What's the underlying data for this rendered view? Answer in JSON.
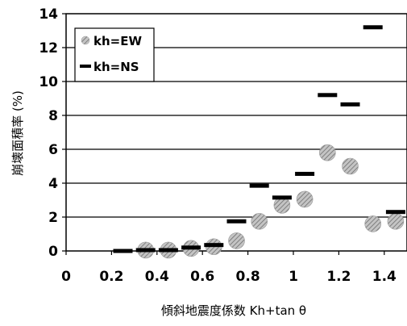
{
  "chart_data": {
    "type": "scatter",
    "xlabel": "傾斜地震度係数 Kh+tan θ",
    "ylabel": "崩壊面積率 (%)",
    "xlim": [
      0,
      1.5
    ],
    "ylim": [
      0,
      14
    ],
    "x_ticks": [
      "0",
      "0.2",
      "0.4",
      "0.6",
      "0.8",
      "1",
      "1.2",
      "1.4"
    ],
    "y_ticks": [
      "0",
      "2",
      "4",
      "6",
      "8",
      "10",
      "12",
      "14"
    ],
    "grid": "horizontal",
    "legend_position": "top-left",
    "series": [
      {
        "name": "kh=EW",
        "marker": "hatched-circle",
        "color": "#a8a8a8",
        "points": [
          {
            "x": 0.35,
            "y": 0.05
          },
          {
            "x": 0.45,
            "y": 0.05
          },
          {
            "x": 0.55,
            "y": 0.15
          },
          {
            "x": 0.65,
            "y": 0.25
          },
          {
            "x": 0.75,
            "y": 0.6
          },
          {
            "x": 0.85,
            "y": 1.75
          },
          {
            "x": 0.95,
            "y": 2.7
          },
          {
            "x": 1.05,
            "y": 3.05
          },
          {
            "x": 1.15,
            "y": 5.8
          },
          {
            "x": 1.25,
            "y": 5.0
          },
          {
            "x": 1.35,
            "y": 1.6
          },
          {
            "x": 1.45,
            "y": 1.75
          }
        ]
      },
      {
        "name": "kh=NS",
        "marker": "dash",
        "color": "#000000",
        "points": [
          {
            "x": 0.25,
            "y": 0.0
          },
          {
            "x": 0.35,
            "y": 0.05
          },
          {
            "x": 0.45,
            "y": 0.05
          },
          {
            "x": 0.55,
            "y": 0.2
          },
          {
            "x": 0.65,
            "y": 0.35
          },
          {
            "x": 0.75,
            "y": 1.75
          },
          {
            "x": 0.85,
            "y": 3.85
          },
          {
            "x": 0.95,
            "y": 3.15
          },
          {
            "x": 1.05,
            "y": 4.55
          },
          {
            "x": 1.15,
            "y": 9.2
          },
          {
            "x": 1.25,
            "y": 8.65
          },
          {
            "x": 1.35,
            "y": 13.2
          },
          {
            "x": 1.45,
            "y": 2.3
          }
        ]
      }
    ]
  }
}
